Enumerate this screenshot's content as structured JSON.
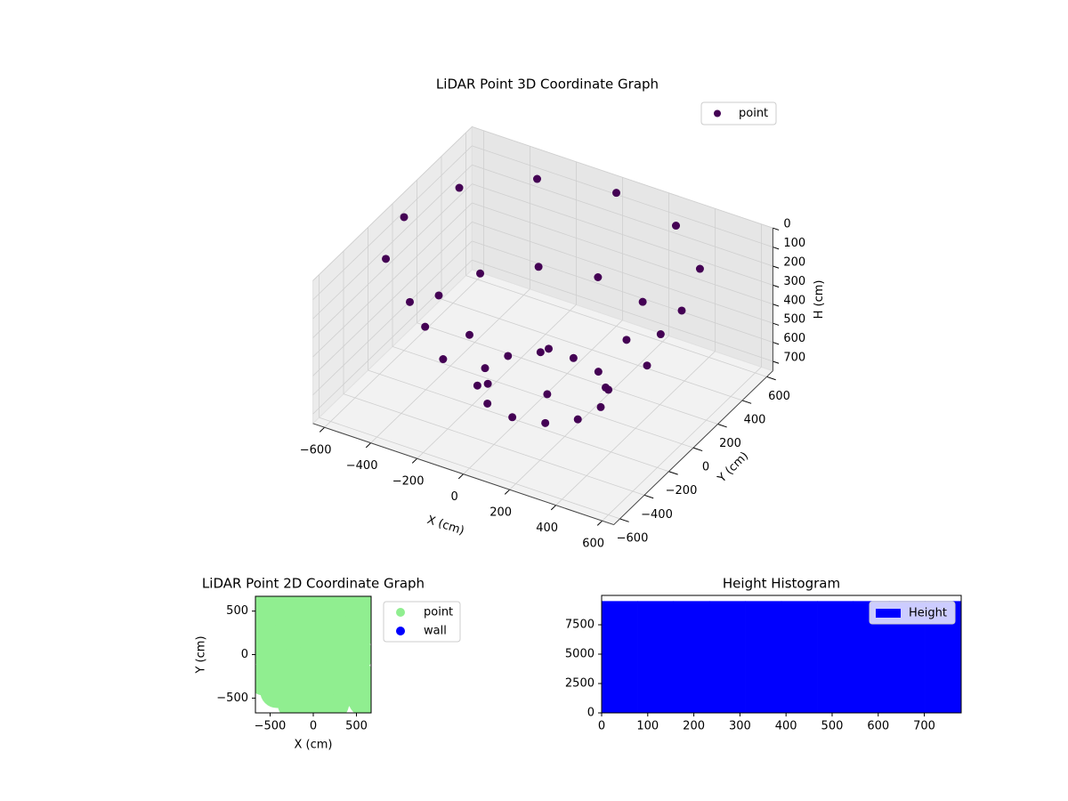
{
  "chart_data": [
    {
      "type": "scatter3d",
      "title": "LiDAR Point 3D Coordinate Graph",
      "x_label": "X (cm)",
      "y_label": "Y (cm)",
      "z_label": "H (cm)",
      "xlim": [
        -650,
        650
      ],
      "ylim": [
        -650,
        650
      ],
      "zlim": [
        750,
        0
      ],
      "xticks": [
        {
          "value": -600,
          "label": "−600"
        },
        {
          "value": -400,
          "label": "−400"
        },
        {
          "value": -200,
          "label": "−200"
        },
        0,
        200,
        400,
        600
      ],
      "yticks": [
        {
          "value": -600,
          "label": "−600"
        },
        {
          "value": -400,
          "label": "−400"
        },
        {
          "value": -200,
          "label": "−200"
        },
        0,
        200,
        400,
        600
      ],
      "zticks": [
        0,
        100,
        200,
        300,
        400,
        500,
        600,
        700
      ],
      "grid": true,
      "legend": "upper right",
      "series": [
        {
          "name": "point",
          "color": "#440154",
          "x": [
            600,
            520,
            300,
            0,
            -300,
            -520,
            -600,
            -520,
            -300,
            0,
            300,
            520,
            450,
            390,
            225,
            0,
            -225,
            -390,
            -450,
            -390,
            -225,
            0,
            225,
            390,
            250,
            217,
            125,
            0,
            -125,
            -217,
            -250,
            -217,
            -125,
            0,
            125,
            217
          ],
          "y": [
            0,
            300,
            520,
            600,
            520,
            300,
            0,
            -300,
            -520,
            -600,
            -520,
            -300,
            0,
            225,
            390,
            450,
            390,
            225,
            0,
            -225,
            -390,
            -450,
            -390,
            -225,
            0,
            125,
            217,
            250,
            217,
            125,
            0,
            -125,
            -217,
            -250,
            -217,
            -125
          ],
          "h": [
            50,
            50,
            50,
            50,
            50,
            50,
            50,
            50,
            50,
            50,
            50,
            50,
            400,
            400,
            400,
            400,
            400,
            400,
            400,
            400,
            400,
            400,
            400,
            400,
            700,
            700,
            700,
            700,
            700,
            700,
            700,
            700,
            700,
            700,
            700,
            700
          ]
        }
      ]
    },
    {
      "type": "scatter",
      "title": "LiDAR Point 2D Coordinate Graph",
      "x_label": "X (cm)",
      "y_label": "Y (cm)",
      "xlim": [
        -670,
        670
      ],
      "ylim": [
        -670,
        670
      ],
      "xticks": [
        {
          "value": -500,
          "label": "−500"
        },
        0,
        500
      ],
      "yticks": [
        {
          "value": -500,
          "label": "−500"
        },
        0,
        500
      ],
      "legend": "outside right",
      "series": [
        {
          "name": "point",
          "color": "#90ee90",
          "x": [
            0,
            250,
            -250,
            0,
            0,
            250,
            -250,
            250,
            -250,
            500,
            -500,
            0,
            0,
            420,
            -420,
            420,
            -420,
            580,
            -580,
            560,
            -560,
            220,
            -220,
            220,
            -220,
            -620,
            620,
            600,
            -450,
            450,
            120,
            -120
          ],
          "y": [
            0,
            0,
            0,
            250,
            -250,
            250,
            250,
            -250,
            -250,
            0,
            0,
            540,
            -560,
            400,
            420,
            -400,
            -420,
            300,
            200,
            -300,
            -280,
            560,
            560,
            -560,
            -560,
            480,
            560,
            -520,
            600,
            620,
            -620,
            -620
          ]
        },
        {
          "name": "wall",
          "color": "#0000ff",
          "x": [],
          "y": []
        }
      ]
    },
    {
      "type": "histogram",
      "title": "Height Histogram",
      "color": "#0000ff",
      "series_name": "Height",
      "legend": "upper right",
      "bins": [
        0,
        78,
        156,
        234,
        312,
        390,
        468,
        546,
        624,
        702,
        780
      ],
      "values": [
        9500,
        9500,
        9500,
        9500,
        9500,
        9500,
        9500,
        9500,
        9500,
        9500
      ],
      "xlim": [
        0,
        780
      ],
      "ylim": [
        0,
        10000
      ],
      "xticks": [
        0,
        100,
        200,
        300,
        400,
        500,
        600,
        700
      ],
      "yticks": [
        0,
        2500,
        5000,
        7500
      ]
    }
  ]
}
